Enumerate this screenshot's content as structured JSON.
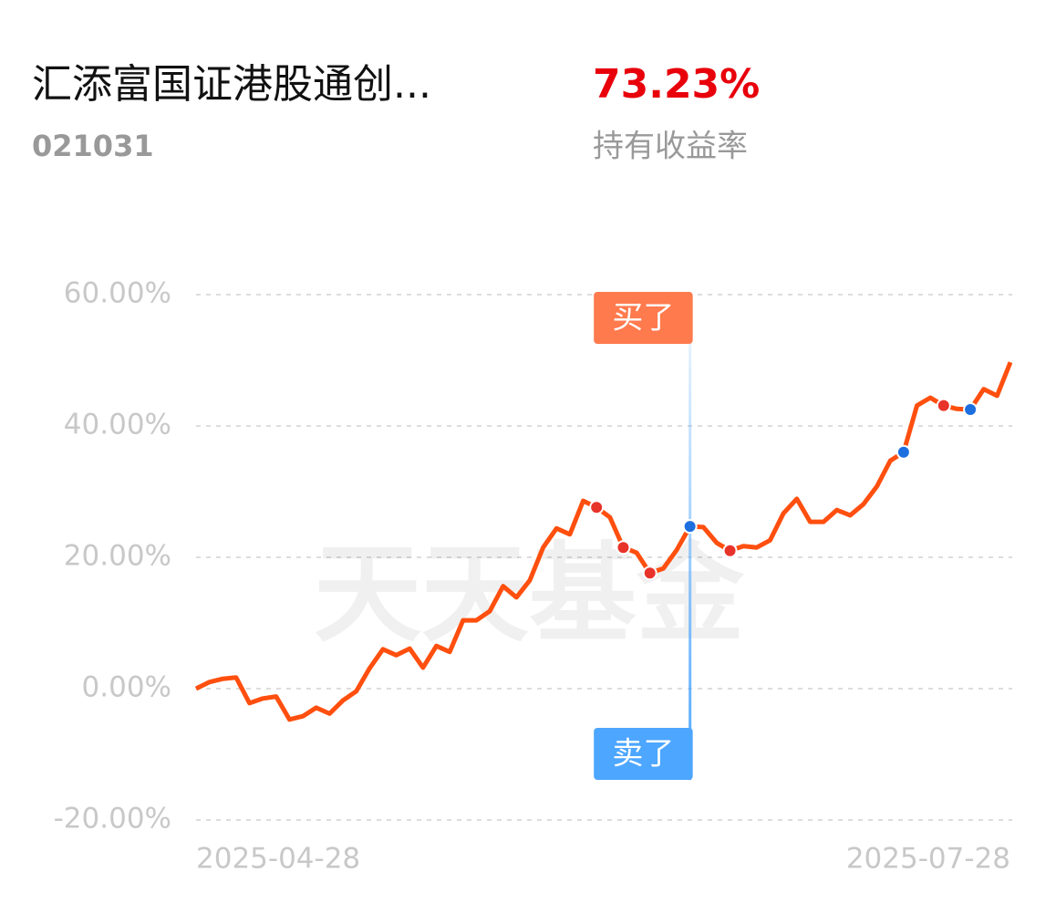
{
  "header": {
    "title": "汇添富国证港股通创...",
    "code": "021031",
    "return_value": "73.23%",
    "return_label": "持有收益率"
  },
  "chart_data": {
    "type": "line",
    "watermark": "天天基金",
    "categories": [
      "2025-04-28",
      null,
      null,
      null,
      null,
      null,
      null,
      null,
      null,
      null,
      null,
      null,
      null,
      null,
      null,
      null,
      null,
      null,
      null,
      null,
      null,
      null,
      null,
      null,
      null,
      null,
      null,
      null,
      null,
      null,
      null,
      null,
      null,
      null,
      null,
      null,
      null,
      null,
      null,
      null,
      null,
      null,
      null,
      null,
      null,
      null,
      null,
      null,
      null,
      null,
      null,
      null,
      null,
      null,
      null,
      null,
      null,
      null,
      null,
      null,
      null,
      "2025-07-28"
    ],
    "series": [
      {
        "name": "持有收益率",
        "color": "#ff4f0f",
        "values": [
          0,
          1.0,
          1.5,
          1.7,
          -2.2,
          -1.5,
          -1.2,
          -4.7,
          -4.2,
          -2.9,
          -3.8,
          -1.8,
          -0.4,
          3.1,
          6.0,
          5.1,
          6.1,
          3.2,
          6.5,
          5.6,
          10.4,
          10.4,
          11.8,
          15.6,
          13.9,
          16.5,
          21.5,
          24.4,
          23.5,
          28.6,
          27.6,
          26.1,
          21.5,
          20.7,
          17.6,
          18.3,
          21.1,
          24.7,
          24.6,
          22.2,
          21.0,
          21.7,
          21.5,
          22.6,
          26.7,
          28.9,
          25.4,
          25.4,
          27.2,
          26.4,
          28.1,
          30.8,
          34.7,
          36.0,
          43.1,
          44.3,
          43.1,
          42.6,
          42.5,
          45.6,
          44.6,
          49.7
        ]
      }
    ],
    "buy_points": [
      30,
      32,
      34,
      40,
      56
    ],
    "sell_points": [
      37,
      53,
      58
    ],
    "highlight": {
      "buy_index": 30,
      "sell_index": 37,
      "buy_label": "买了",
      "sell_label": "卖了"
    },
    "ylim": [
      -20,
      60
    ],
    "yticks": [
      {
        "value": 60,
        "label": "60.00%"
      },
      {
        "value": 40,
        "label": "40.00%"
      },
      {
        "value": 20,
        "label": "20.00%"
      },
      {
        "value": 0,
        "label": "0.00%"
      },
      {
        "value": -20,
        "label": "-20.00%"
      }
    ],
    "grid": true
  }
}
